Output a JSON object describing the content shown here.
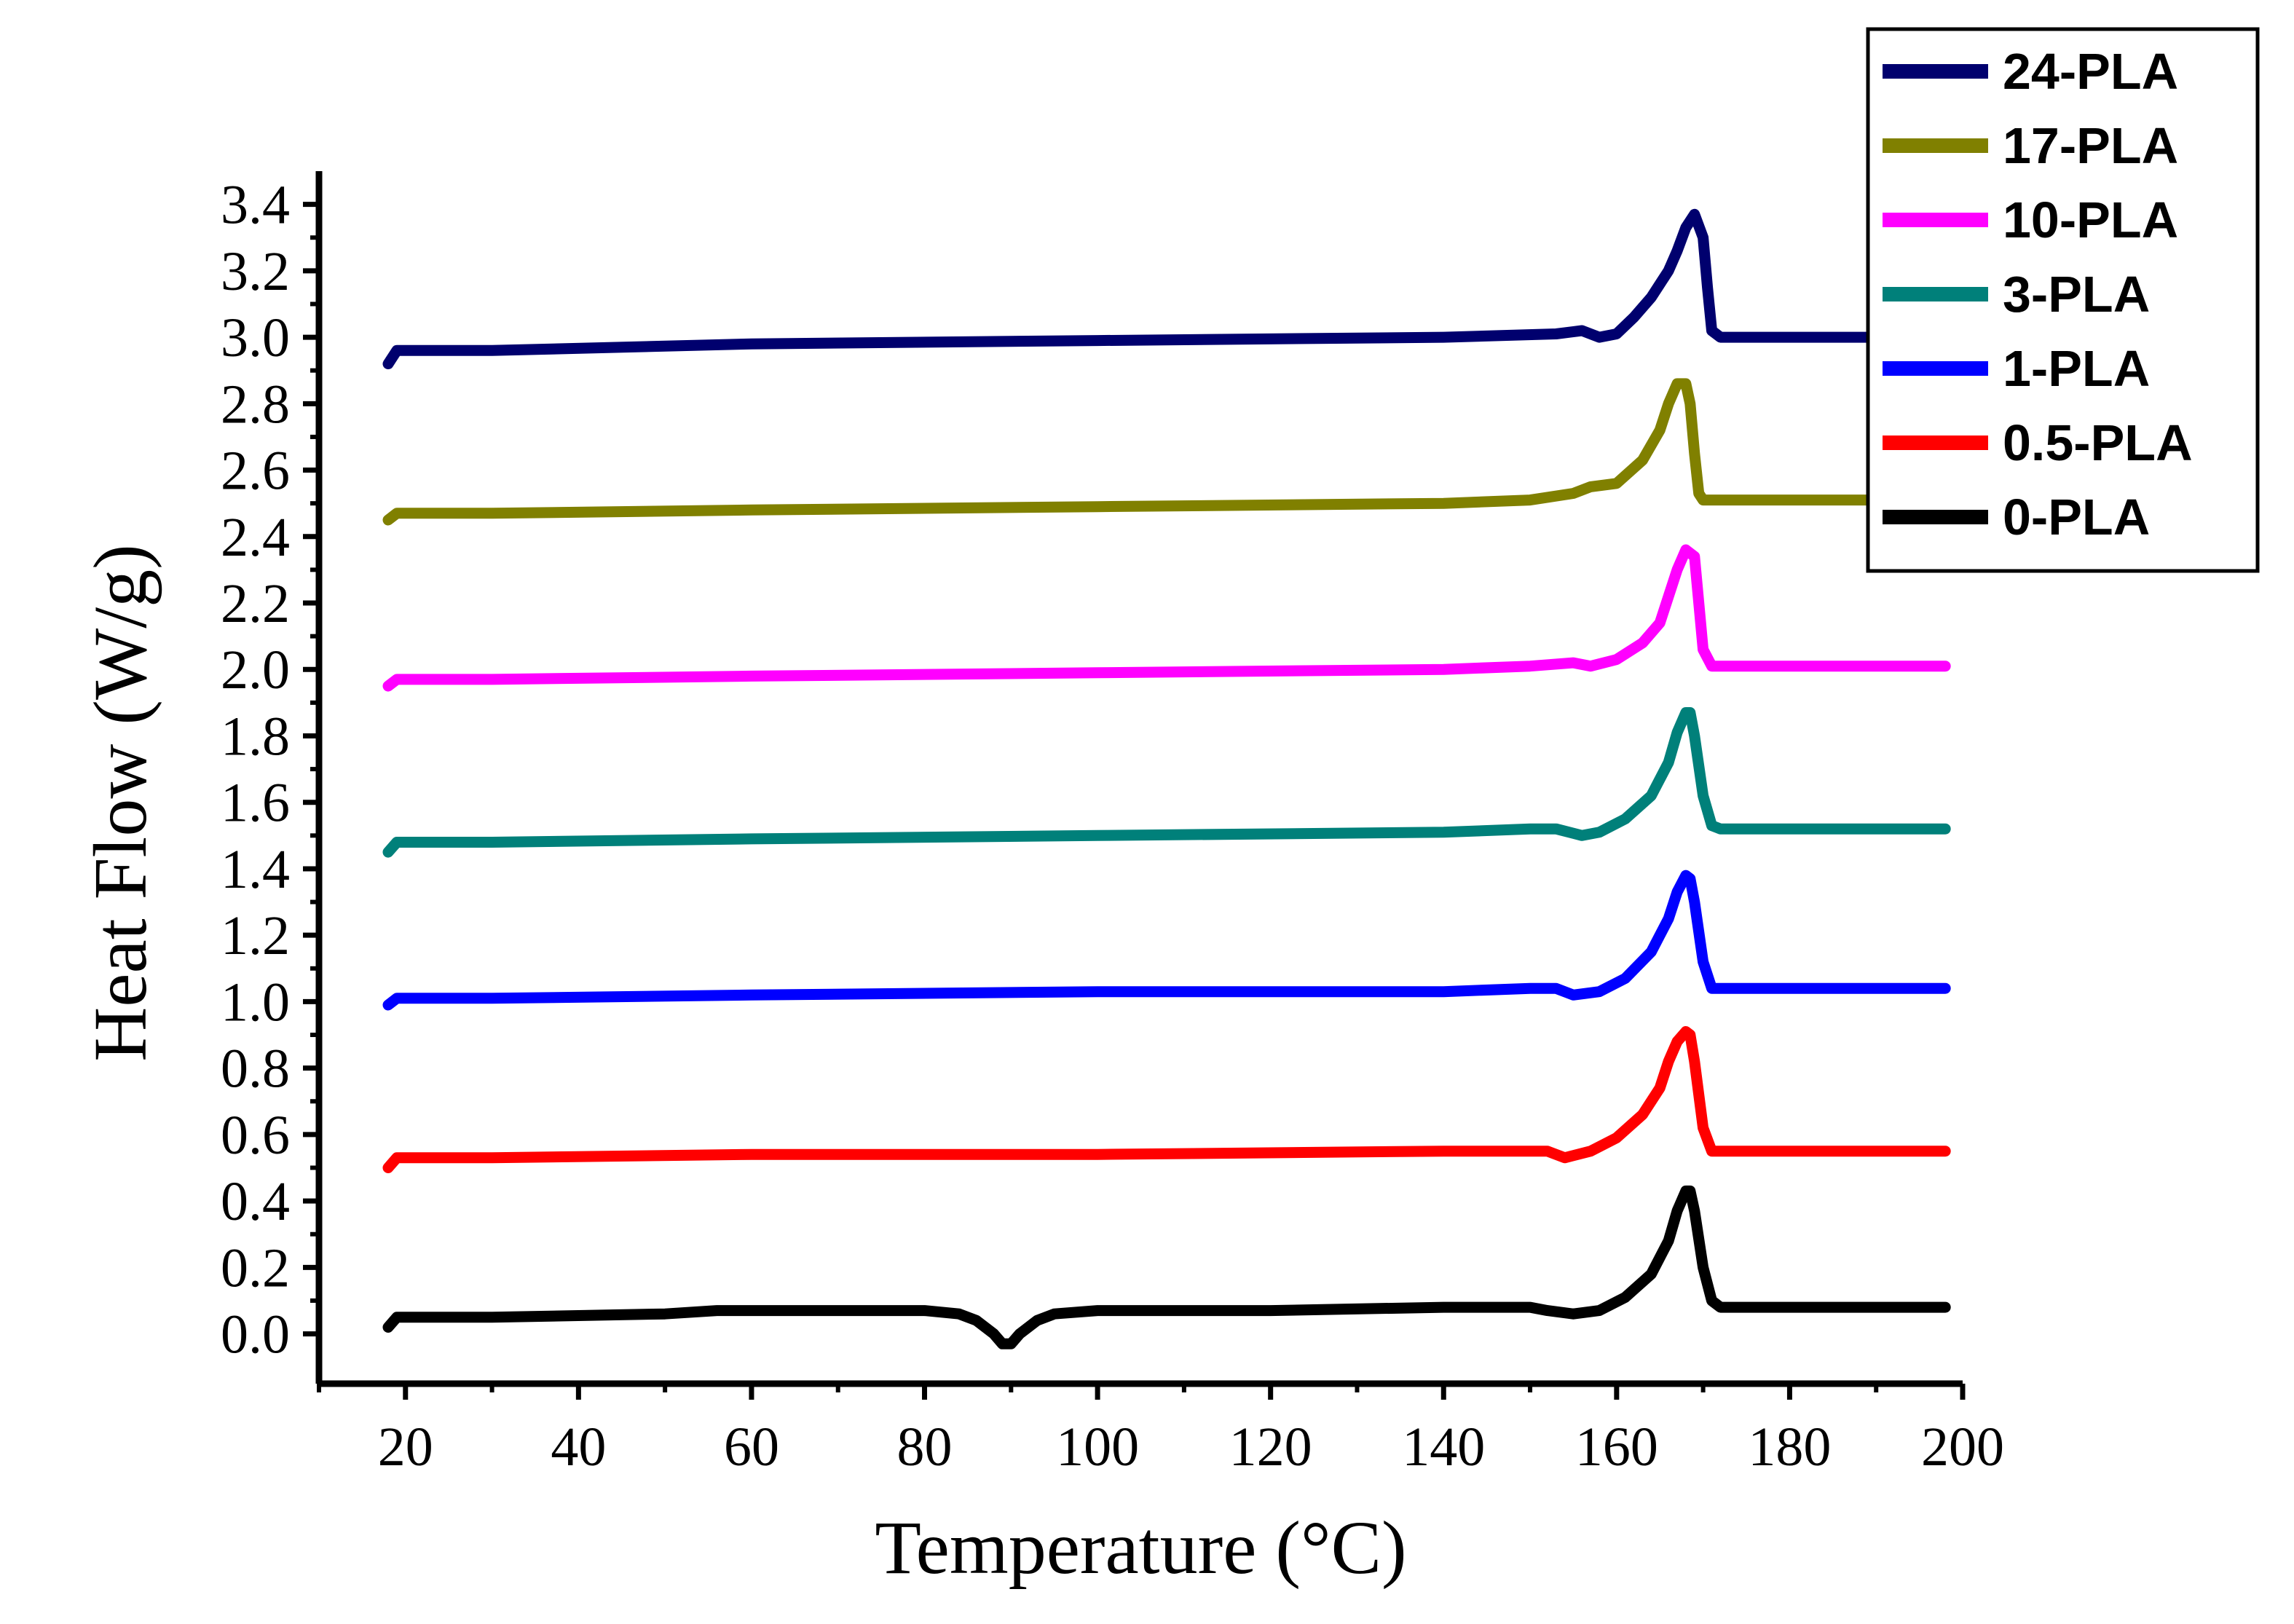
{
  "chart_data": {
    "type": "line",
    "title": "",
    "xlabel": "Temperature (°C)",
    "ylabel": "Heat Flow (W/g)",
    "xlim": [
      10,
      200
    ],
    "ylim": [
      -0.15,
      3.5
    ],
    "x_ticks": [
      20,
      40,
      60,
      80,
      100,
      120,
      140,
      160,
      180,
      200
    ],
    "y_ticks": [
      0.0,
      0.2,
      0.4,
      0.6,
      0.8,
      1.0,
      1.2,
      1.4,
      1.6,
      1.8,
      2.0,
      2.2,
      2.4,
      2.6,
      2.8,
      3.0,
      3.2,
      3.4
    ],
    "legend_position": "top-right",
    "series": [
      {
        "name": "24-PLA",
        "color": "#00006e",
        "x": [
          18,
          19,
          30,
          60,
          100,
          140,
          153,
          156,
          158,
          160,
          162,
          164,
          166,
          167,
          168,
          169,
          170,
          170.5,
          171,
          172,
          175,
          190
        ],
        "y": [
          2.92,
          2.96,
          2.96,
          2.98,
          2.99,
          3.0,
          3.01,
          3.02,
          3.0,
          3.01,
          3.06,
          3.12,
          3.2,
          3.26,
          3.33,
          3.37,
          3.3,
          3.15,
          3.02,
          3.0,
          3.0,
          3.0
        ]
      },
      {
        "name": "17-PLA",
        "color": "#808000",
        "x": [
          18,
          19,
          30,
          60,
          100,
          140,
          150,
          155,
          157,
          160,
          163,
          165,
          166,
          167,
          168,
          168.5,
          169,
          169.5,
          170,
          172,
          190
        ],
        "y": [
          2.45,
          2.47,
          2.47,
          2.48,
          2.49,
          2.5,
          2.51,
          2.53,
          2.55,
          2.56,
          2.63,
          2.72,
          2.8,
          2.86,
          2.86,
          2.8,
          2.65,
          2.53,
          2.51,
          2.51,
          2.51
        ]
      },
      {
        "name": "10-PLA",
        "color": "#ff00ff",
        "x": [
          18,
          19,
          30,
          60,
          100,
          140,
          150,
          155,
          157,
          160,
          163,
          165,
          166,
          167,
          168,
          169,
          169.5,
          170,
          171,
          172,
          198
        ],
        "y": [
          1.95,
          1.97,
          1.97,
          1.98,
          1.99,
          2.0,
          2.01,
          2.02,
          2.01,
          2.03,
          2.08,
          2.14,
          2.22,
          2.3,
          2.36,
          2.34,
          2.2,
          2.06,
          2.01,
          2.01,
          2.01
        ]
      },
      {
        "name": "3-PLA",
        "color": "#00807a",
        "x": [
          18,
          19,
          30,
          60,
          100,
          140,
          150,
          153,
          156,
          158,
          161,
          164,
          166,
          167,
          168,
          168.5,
          169,
          170,
          171,
          172,
          198
        ],
        "y": [
          1.45,
          1.48,
          1.48,
          1.49,
          1.5,
          1.51,
          1.52,
          1.52,
          1.5,
          1.51,
          1.55,
          1.62,
          1.72,
          1.81,
          1.87,
          1.87,
          1.8,
          1.62,
          1.53,
          1.52,
          1.52
        ]
      },
      {
        "name": "1-PLA",
        "color": "#0000ff",
        "x": [
          18,
          19,
          30,
          60,
          100,
          140,
          150,
          153,
          155,
          158,
          161,
          164,
          166,
          167,
          168,
          168.5,
          169,
          170,
          171,
          172,
          198
        ],
        "y": [
          0.99,
          1.01,
          1.01,
          1.02,
          1.03,
          1.03,
          1.04,
          1.04,
          1.02,
          1.03,
          1.07,
          1.15,
          1.25,
          1.33,
          1.38,
          1.37,
          1.3,
          1.12,
          1.04,
          1.04,
          1.04
        ]
      },
      {
        "name": "0.5-PLA",
        "color": "#ff0000",
        "x": [
          18,
          19,
          30,
          60,
          100,
          140,
          150,
          152,
          154,
          157,
          160,
          163,
          165,
          166,
          167,
          168,
          168.5,
          169,
          170,
          171,
          172,
          198
        ],
        "y": [
          0.5,
          0.53,
          0.53,
          0.54,
          0.54,
          0.55,
          0.55,
          0.55,
          0.53,
          0.55,
          0.59,
          0.66,
          0.74,
          0.82,
          0.88,
          0.91,
          0.9,
          0.82,
          0.62,
          0.55,
          0.55,
          0.55
        ]
      },
      {
        "name": "0-PLA",
        "color": "#000000",
        "x": [
          18,
          19,
          30,
          50,
          56,
          70,
          80,
          84,
          86,
          88,
          89,
          90,
          91,
          93,
          95,
          100,
          120,
          140,
          150,
          152,
          155,
          158,
          161,
          164,
          166,
          167,
          168,
          168.5,
          169,
          170,
          171,
          172,
          198
        ],
        "y": [
          0.02,
          0.05,
          0.05,
          0.06,
          0.07,
          0.07,
          0.07,
          0.06,
          0.04,
          0.0,
          -0.03,
          -0.03,
          0.0,
          0.04,
          0.06,
          0.07,
          0.07,
          0.08,
          0.08,
          0.07,
          0.06,
          0.07,
          0.11,
          0.18,
          0.28,
          0.37,
          0.43,
          0.43,
          0.37,
          0.2,
          0.1,
          0.08,
          0.08
        ]
      }
    ]
  }
}
